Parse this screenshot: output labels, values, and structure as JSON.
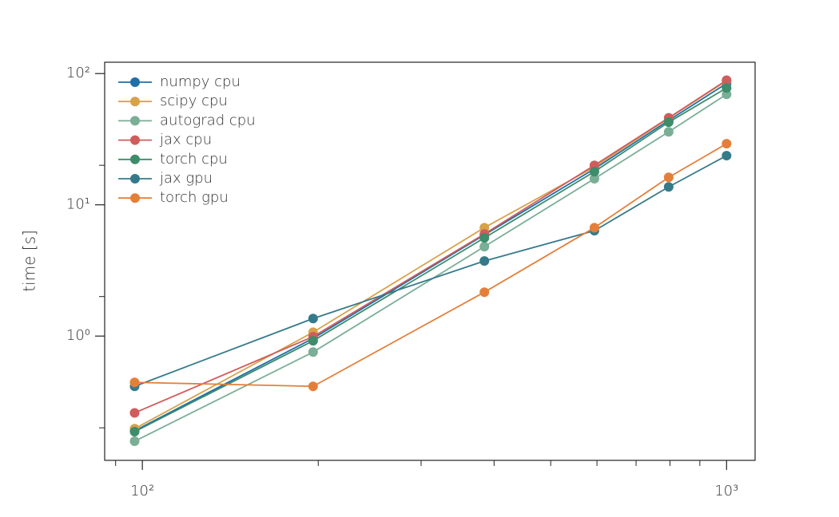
{
  "chart_data": {
    "type": "line",
    "x": [
      97,
      196,
      385,
      594,
      796,
      1000
    ],
    "series": [
      {
        "name": "numpy cpu",
        "color": "#1f6fa8",
        "values": [
          0.19,
          0.96,
          5.9,
          18.8,
          44,
          84
        ]
      },
      {
        "name": "scipy cpu",
        "color": "#d6a24a",
        "values": [
          0.197,
          1.07,
          6.7,
          19.4,
          45.7,
          88
        ]
      },
      {
        "name": "autograd cpu",
        "color": "#7aae96",
        "values": [
          0.158,
          0.755,
          4.8,
          15.8,
          36,
          69.5
        ]
      },
      {
        "name": "jax cpu",
        "color": "#d05c5c",
        "values": [
          0.26,
          0.99,
          6.0,
          20,
          46,
          89
        ]
      },
      {
        "name": "torch cpu",
        "color": "#3d8c6a",
        "values": [
          0.187,
          0.92,
          5.6,
          17.9,
          42.6,
          77.7
        ]
      },
      {
        "name": "jax gpu",
        "color": "#357a8a",
        "values": [
          0.414,
          1.36,
          3.73,
          6.35,
          13.7,
          23.7
        ]
      },
      {
        "name": "torch gpu",
        "color": "#e47f3a",
        "values": [
          0.444,
          0.414,
          2.16,
          6.7,
          16.2,
          29.2
        ]
      }
    ],
    "ylabel": "time [s]",
    "xscale": "log",
    "yscale": "log",
    "xlim": [
      86.2,
      1119
    ],
    "ylim": [
      0.113,
      122
    ],
    "xticks": [
      {
        "value": 100,
        "label": "10²"
      },
      {
        "value": 1000,
        "label": "10³"
      }
    ],
    "xminorticks": [
      90,
      200,
      300,
      400,
      500,
      600,
      700,
      800,
      900
    ],
    "yticks": [
      {
        "value": 1,
        "label": "10⁰"
      },
      {
        "value": 10,
        "label": "10¹"
      },
      {
        "value": 100,
        "label": "10²"
      }
    ],
    "yminorticks": [
      0.2,
      2,
      20
    ],
    "legend": "upper left"
  }
}
